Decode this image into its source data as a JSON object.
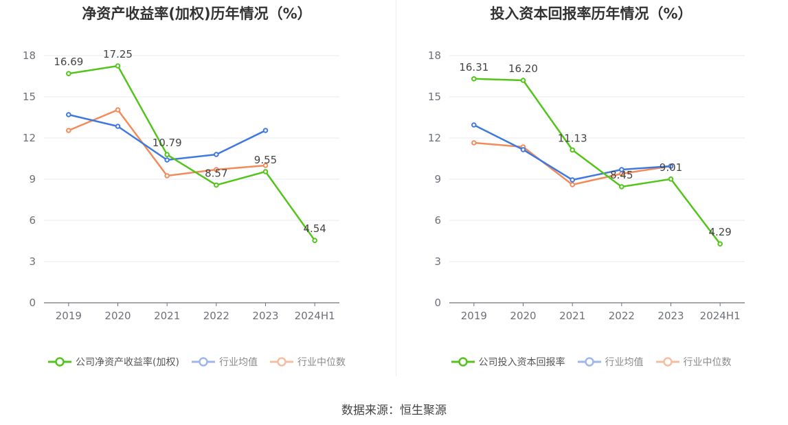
{
  "source_text": "数据来源：恒生聚源",
  "colors": {
    "company": "#52c41a",
    "avg": "#3f79e0",
    "median": "#f28a5a",
    "grid": "#e6e9f2",
    "axis": "#6e7079",
    "label": "#444444"
  },
  "chart_data": [
    {
      "type": "line",
      "title": "净资产收益率(加权)历年情况（%）",
      "categories": [
        "2019",
        "2020",
        "2021",
        "2022",
        "2023",
        "2024H1"
      ],
      "ylim": [
        0,
        18
      ],
      "yticks": [
        "0",
        "3",
        "6",
        "9",
        "12",
        "15",
        "18"
      ],
      "grid": true,
      "legend_position": "bottom",
      "series": [
        {
          "name": "公司净资产收益率(加权)",
          "key": "company",
          "values": [
            16.69,
            17.25,
            10.79,
            8.57,
            9.55,
            4.54
          ],
          "labels": [
            "16.69",
            "17.25",
            "10.79",
            "8.57",
            "9.55",
            "4.54"
          ]
        },
        {
          "name": "行业均值",
          "key": "avg",
          "values": [
            13.7,
            12.85,
            10.4,
            10.8,
            12.55,
            null
          ]
        },
        {
          "name": "行业中位数",
          "key": "median",
          "values": [
            12.55,
            14.05,
            9.25,
            9.7,
            10.0,
            null
          ]
        }
      ]
    },
    {
      "type": "line",
      "title": "投入资本回报率历年情况（%）",
      "categories": [
        "2019",
        "2020",
        "2021",
        "2022",
        "2023",
        "2024H1"
      ],
      "ylim": [
        0,
        18
      ],
      "yticks": [
        "0",
        "3",
        "6",
        "9",
        "12",
        "15",
        "18"
      ],
      "grid": true,
      "legend_position": "bottom",
      "series": [
        {
          "name": "公司投入资本回报率",
          "key": "company",
          "values": [
            16.31,
            16.2,
            11.13,
            8.45,
            9.01,
            4.29
          ],
          "labels": [
            "16.31",
            "16.20",
            "11.13",
            "8.45",
            "9.01",
            "4.29"
          ]
        },
        {
          "name": "行业均值",
          "key": "avg",
          "values": [
            12.95,
            11.15,
            8.95,
            9.7,
            9.95,
            null
          ]
        },
        {
          "name": "行业中位数",
          "key": "median",
          "values": [
            11.65,
            11.35,
            8.6,
            9.4,
            9.95,
            null
          ]
        }
      ]
    }
  ]
}
